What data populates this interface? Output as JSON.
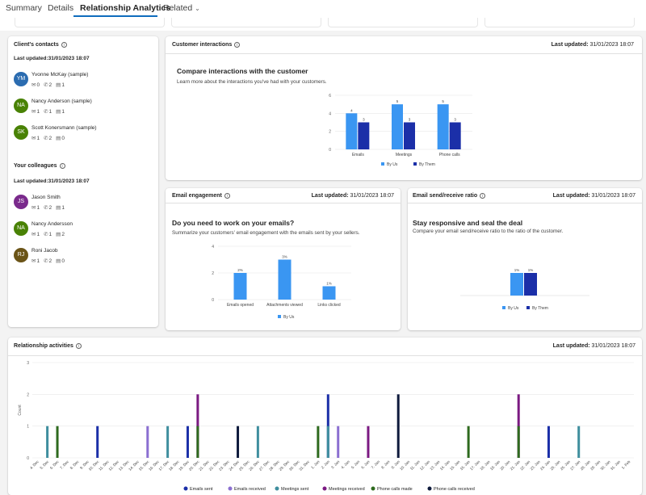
{
  "tabs": [
    {
      "label": "Summary"
    },
    {
      "label": "Details"
    },
    {
      "label": "Relationship Analytics"
    },
    {
      "label": "Related"
    }
  ],
  "clients_contacts": {
    "title": "Client's contacts",
    "last_updated": "Last updated:31/01/2023 18:07",
    "people": [
      {
        "initials": "YM",
        "name": "Yvonne McKay (sample)",
        "color": "#2b6cb0",
        "emails": "0",
        "calls": "2",
        "meetings": "1"
      },
      {
        "initials": "NA",
        "name": "Nancy Anderson (sample)",
        "color": "#498205",
        "emails": "1",
        "calls": "1",
        "meetings": "1"
      },
      {
        "initials": "SK",
        "name": "Scott Konersmann (sample)",
        "color": "#498205",
        "emails": "1",
        "calls": "2",
        "meetings": "0"
      }
    ]
  },
  "colleagues": {
    "title": "Your colleagues",
    "last_updated": "Last updated:31/01/2023 18:07",
    "people": [
      {
        "initials": "JS",
        "name": "Jason Smith",
        "color": "#7a2a8c",
        "emails": "1",
        "calls": "2",
        "meetings": "1"
      },
      {
        "initials": "NA",
        "name": "Nancy Andersson",
        "color": "#498205",
        "emails": "1",
        "calls": "1",
        "meetings": "2"
      },
      {
        "initials": "RJ",
        "name": "Roni Jacob",
        "color": "#6b5417",
        "emails": "1",
        "calls": "2",
        "meetings": "0"
      }
    ]
  },
  "customer_interactions": {
    "title": "Customer interactions",
    "last_updated_label": "Last updated:",
    "last_updated_value": "31/01/2023 18:07",
    "heading": "Compare interactions with the customer",
    "subheading": "Learn more about the interactions you've had with your customers."
  },
  "email_engagement": {
    "title": "Email engagement",
    "last_updated_label": "Last updated:",
    "last_updated_value": "31/01/2023 18:07",
    "heading": "Do you need to work on your emails?",
    "subheading": "Summarize your customers' email engagement with the emails sent by your sellers."
  },
  "send_receive": {
    "title": "Email send/receive ratio",
    "last_updated_label": "Last updated:",
    "last_updated_value": "31/01/2023 18:07",
    "heading": "Stay responsive and seal the deal",
    "subheading": "Compare your email send/receive ratio to the ratio of the customer."
  },
  "relationship_activities": {
    "title": "Relationship activities",
    "last_updated_label": "Last updated:",
    "last_updated_value": "31/01/2023 18:07"
  },
  "colors": {
    "by_us": "#3a96f2",
    "by_them": "#1b2fa8",
    "emails_sent": "#1b2fa8",
    "emails_received": "#8b6fd1",
    "meetings_sent": "#3f8e9e",
    "meetings_received": "#7b1a82",
    "phone_calls_made": "#2e6a1e",
    "phone_calls_received": "#0e1a3c"
  },
  "icons": {
    "info": "info-icon",
    "email": "mail-icon",
    "call": "phone-icon",
    "meeting": "calendar-icon",
    "chevron": "chevron-down-icon"
  },
  "chart_data": [
    {
      "type": "bar",
      "categories": [
        "Emails",
        "Meetings",
        "Phone calls"
      ],
      "series": [
        {
          "name": "By Us",
          "values": [
            4,
            5,
            5
          ]
        },
        {
          "name": "By Them",
          "values": [
            3,
            3,
            3
          ]
        }
      ],
      "ylim": [
        0,
        6
      ],
      "yticks": [
        "0",
        "2",
        "4",
        "6"
      ],
      "legend": "bottom"
    },
    {
      "type": "bar",
      "categories": [
        "Emails opened",
        "Attachments viewed",
        "Links clicked"
      ],
      "series": [
        {
          "name": "By Us",
          "values": [
            2,
            3,
            1
          ],
          "labels": [
            "2%",
            "3%",
            "1%"
          ]
        }
      ],
      "ylim": [
        0,
        4
      ],
      "yticks": [
        "0",
        "2",
        "4"
      ],
      "legend": "bottom"
    },
    {
      "type": "bar",
      "categories": [
        ""
      ],
      "series": [
        {
          "name": "By Us",
          "values": [
            1
          ],
          "labels": [
            "1%"
          ]
        },
        {
          "name": "By Them",
          "values": [
            1
          ],
          "labels": [
            "1%"
          ]
        }
      ],
      "legend": "bottom"
    },
    {
      "type": "bar",
      "ylabel": "Count",
      "ylim": [
        0,
        3
      ],
      "yticks": [
        "0",
        "1",
        "2",
        "3"
      ],
      "x": [
        "4. Dec",
        "5. Dec",
        "6. Dec",
        "7. Dec",
        "8. Dec",
        "9. Dec",
        "10. Dec",
        "11. Dec",
        "12. Dec",
        "13. Dec",
        "14. Dec",
        "15. Dec",
        "16. Dec",
        "17. Dec",
        "18. Dec",
        "19. Dec",
        "20. Dec",
        "21. Dec",
        "22. Dec",
        "23. Dec",
        "24. Dec",
        "25. Dec",
        "26. Dec",
        "27. Dec",
        "28. Dec",
        "29. Dec",
        "30. Dec",
        "31. Dec",
        "1. Jan",
        "2. Jan",
        "3. Jan",
        "4. Jan",
        "5. Jan",
        "6. Jan",
        "7. Jan",
        "8. Jan",
        "9. Jan",
        "10. Jan",
        "11. Jan",
        "12. Jan",
        "13. Jan",
        "14. Jan",
        "15. Jan",
        "16. Jan",
        "17. Jan",
        "18. Jan",
        "19. Jan",
        "20. Jan",
        "21. Jan",
        "22. Jan",
        "23. Jan",
        "24. Jan",
        "25. Jan",
        "26. Jan",
        "27. Jan",
        "28. Jan",
        "29. Jan",
        "30. Jan",
        "31. Jan",
        "1. Feb"
      ],
      "series": [
        {
          "name": "Emails sent",
          "points": [
            {
              "x": "10. Dec",
              "y": 1
            },
            {
              "x": "19. Dec",
              "y": 1
            },
            {
              "x": "2. Jan",
              "y": 2
            },
            {
              "x": "24. Jan",
              "y": 1
            }
          ]
        },
        {
          "name": "Emails received",
          "points": [
            {
              "x": "15. Dec",
              "y": 1
            },
            {
              "x": "3. Jan",
              "y": 1
            }
          ]
        },
        {
          "name": "Meetings sent",
          "points": [
            {
              "x": "5. Dec",
              "y": 1
            },
            {
              "x": "17. Dec",
              "y": 1
            },
            {
              "x": "26. Dec",
              "y": 1
            },
            {
              "x": "2. Jan",
              "y": 1
            },
            {
              "x": "27. Jan",
              "y": 1
            }
          ]
        },
        {
          "name": "Meetings received",
          "points": [
            {
              "x": "20. Dec",
              "y": 2
            },
            {
              "x": "6. Jan",
              "y": 1
            },
            {
              "x": "21. Jan",
              "y": 2
            }
          ]
        },
        {
          "name": "Phone calls made",
          "points": [
            {
              "x": "6. Dec",
              "y": 1
            },
            {
              "x": "20. Dec",
              "y": 1
            },
            {
              "x": "1. Jan",
              "y": 1
            },
            {
              "x": "16. Jan",
              "y": 1
            },
            {
              "x": "21. Jan",
              "y": 1
            }
          ]
        },
        {
          "name": "Phone calls received",
          "points": [
            {
              "x": "24. Dec",
              "y": 1
            },
            {
              "x": "9. Jan",
              "y": 2
            }
          ]
        }
      ],
      "legend": "bottom"
    }
  ]
}
